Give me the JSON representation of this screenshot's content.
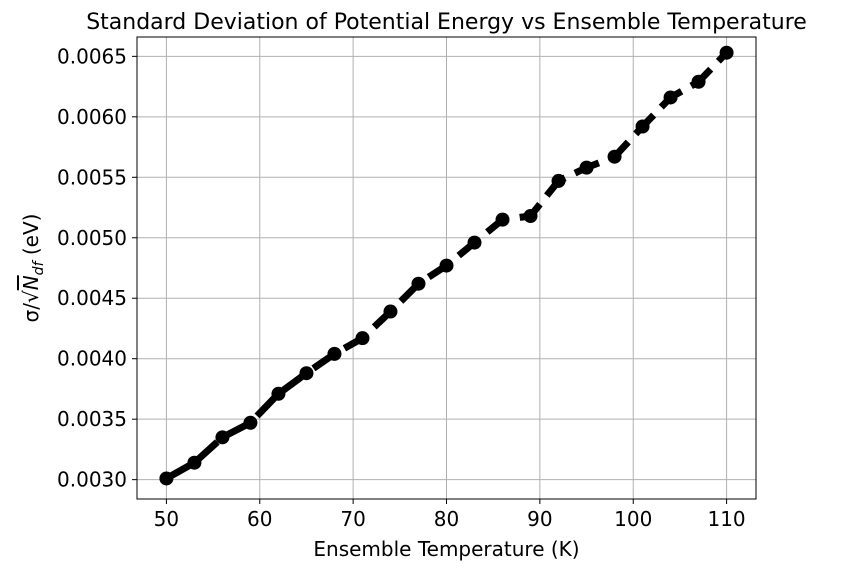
{
  "chart_data": {
    "type": "line",
    "title": "Standard Deviation of Potential Energy vs Ensemble Temperature",
    "xlabel": "Ensemble Temperature (K)",
    "ylabel_prefix": "σ/√",
    "ylabel_symbol": "N",
    "ylabel_subscript": "df",
    "ylabel_unit": " (eV)",
    "xlim": [
      46.85,
      113.15
    ],
    "ylim": [
      0.00284,
      0.00666
    ],
    "x_ticks": [
      50,
      60,
      70,
      80,
      90,
      100,
      110
    ],
    "y_ticks": [
      0.003,
      0.0035,
      0.004,
      0.0045,
      0.005,
      0.0055,
      0.006,
      0.0065
    ],
    "y_tick_labels": [
      "0.0030",
      "0.0035",
      "0.0040",
      "0.0045",
      "0.0050",
      "0.0055",
      "0.0060",
      "0.0065"
    ],
    "grid": true,
    "line_style": "dashed",
    "color": "#000000",
    "marker": "circle",
    "x": [
      50,
      53,
      56,
      59,
      62,
      65,
      68,
      71,
      74,
      77,
      80,
      83,
      86,
      89,
      92,
      95,
      98,
      101,
      104,
      107,
      110
    ],
    "y": [
      0.00301,
      0.00314,
      0.00335,
      0.00347,
      0.00371,
      0.00388,
      0.00404,
      0.00417,
      0.00439,
      0.00462,
      0.00477,
      0.00496,
      0.00515,
      0.00518,
      0.00547,
      0.00558,
      0.00567,
      0.00592,
      0.00616,
      0.00629,
      0.00653
    ]
  }
}
